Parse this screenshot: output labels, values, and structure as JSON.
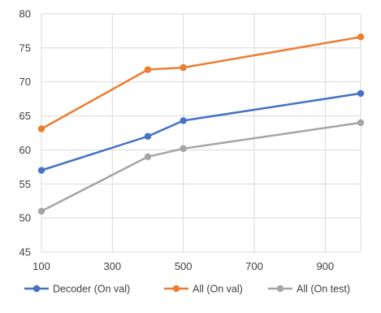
{
  "chart_data": {
    "type": "line",
    "title": "",
    "xlabel": "",
    "ylabel": "",
    "xlim": [
      100,
      1000
    ],
    "ylim": [
      45,
      80
    ],
    "x_ticks": [
      100,
      300,
      500,
      700,
      900
    ],
    "y_ticks": [
      45,
      50,
      55,
      60,
      65,
      70,
      75,
      80
    ],
    "grid": true,
    "legend_position": "bottom",
    "series": [
      {
        "name": "Decoder (On val)",
        "color": "#4472C4",
        "points": [
          [
            100,
            57.0
          ],
          [
            400,
            62.0
          ],
          [
            500,
            64.3
          ],
          [
            1000,
            68.3
          ]
        ]
      },
      {
        "name": "All (On val)",
        "color": "#ED7D31",
        "points": [
          [
            100,
            63.1
          ],
          [
            400,
            71.8
          ],
          [
            500,
            72.1
          ],
          [
            1000,
            76.6
          ]
        ]
      },
      {
        "name": "All (On test)",
        "color": "#A5A5A5",
        "points": [
          [
            100,
            51.0
          ],
          [
            400,
            59.0
          ],
          [
            500,
            60.2
          ],
          [
            1000,
            64.0
          ]
        ]
      }
    ]
  }
}
